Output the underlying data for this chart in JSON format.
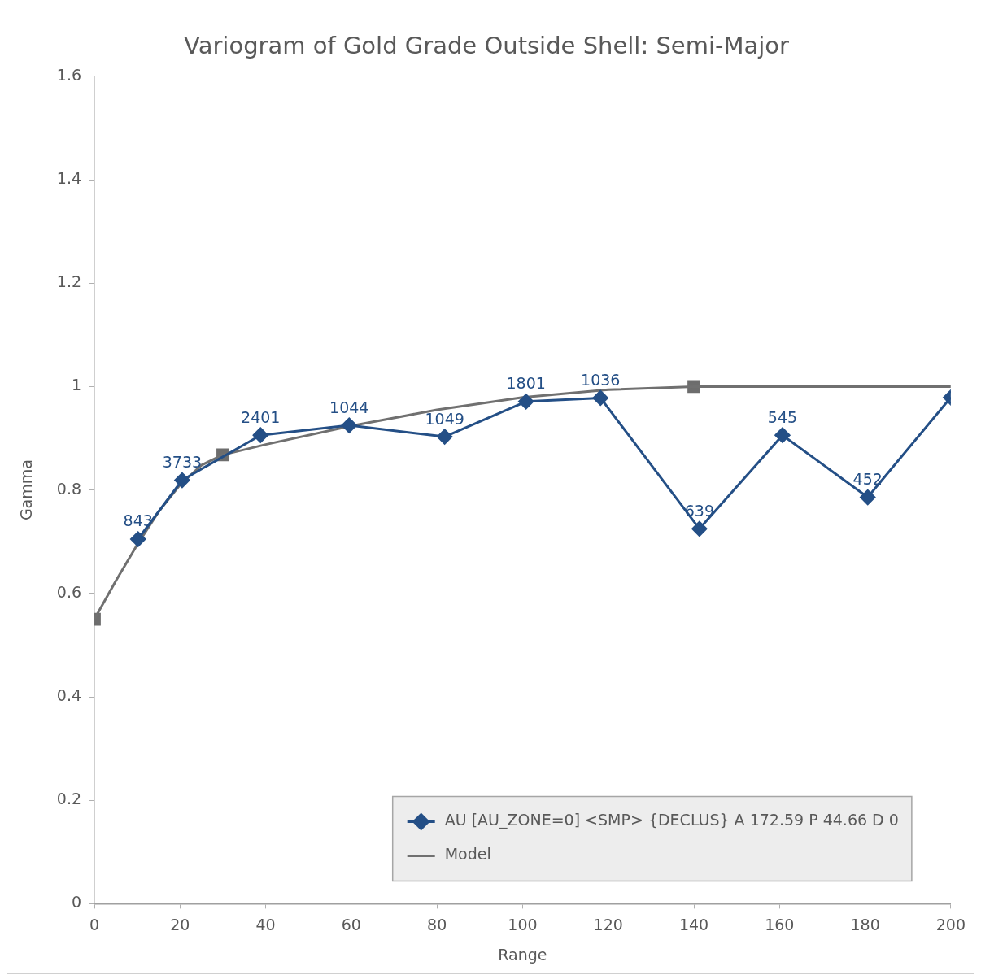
{
  "chart_data": {
    "type": "line",
    "title": "Variogram of Gold Grade Outside Shell: Semi-Major",
    "xlabel": "Range",
    "ylabel": "Gamma",
    "xlim": [
      0,
      200
    ],
    "xticks": [
      0,
      20,
      40,
      60,
      80,
      100,
      120,
      140,
      160,
      180,
      200
    ],
    "ylim": [
      0,
      1.6
    ],
    "yticks": [
      0,
      0.2,
      0.4,
      0.6,
      0.8,
      1,
      1.2,
      1.4,
      1.6
    ],
    "grid": false,
    "legend": "bottom right",
    "annotations": [
      {
        "text": "843",
        "x": 10.2,
        "y": 0.705
      },
      {
        "text": "3733",
        "x": 20.5,
        "y": 0.819
      },
      {
        "text": "2401",
        "x": 38.8,
        "y": 0.906
      },
      {
        "text": "1044",
        "x": 59.5,
        "y": 0.925
      },
      {
        "text": "1049",
        "x": 81.8,
        "y": 0.903
      },
      {
        "text": "1801",
        "x": 100.8,
        "y": 0.971
      },
      {
        "text": "1036",
        "x": 118.2,
        "y": 0.978
      },
      {
        "text": "639",
        "x": 141.3,
        "y": 0.725
      },
      {
        "text": "545",
        "x": 160.7,
        "y": 0.906
      },
      {
        "text": "452",
        "x": 180.6,
        "y": 0.786
      }
    ],
    "series": [
      {
        "name": "AU [AU_ZONE=0] <SMP> {DECLUS} A 172.59 P 44.66 D 0",
        "color": "#244f86",
        "marker": "diamond",
        "x": [
          10.2,
          20.5,
          38.8,
          59.5,
          81.8,
          100.8,
          118.2,
          141.3,
          160.7,
          180.6,
          200
        ],
        "values": [
          0.705,
          0.819,
          0.906,
          0.925,
          0.903,
          0.971,
          0.978,
          0.725,
          0.906,
          0.786,
          0.979
        ]
      },
      {
        "name": "Model",
        "color": "#707070",
        "marker": "none",
        "x": [
          0,
          5,
          10,
          15,
          20,
          25,
          30,
          40,
          60,
          80,
          100,
          120,
          140,
          200
        ],
        "values": [
          0.55,
          0.624,
          0.694,
          0.758,
          0.81,
          0.848,
          0.868,
          0.888,
          0.924,
          0.955,
          0.979,
          0.994,
          1,
          1
        ]
      },
      {
        "type": "scatter",
        "color": "#6d6d6d",
        "marker": "square",
        "x": [
          0,
          30,
          140
        ],
        "values": [
          0.55,
          0.868,
          1
        ]
      }
    ]
  }
}
